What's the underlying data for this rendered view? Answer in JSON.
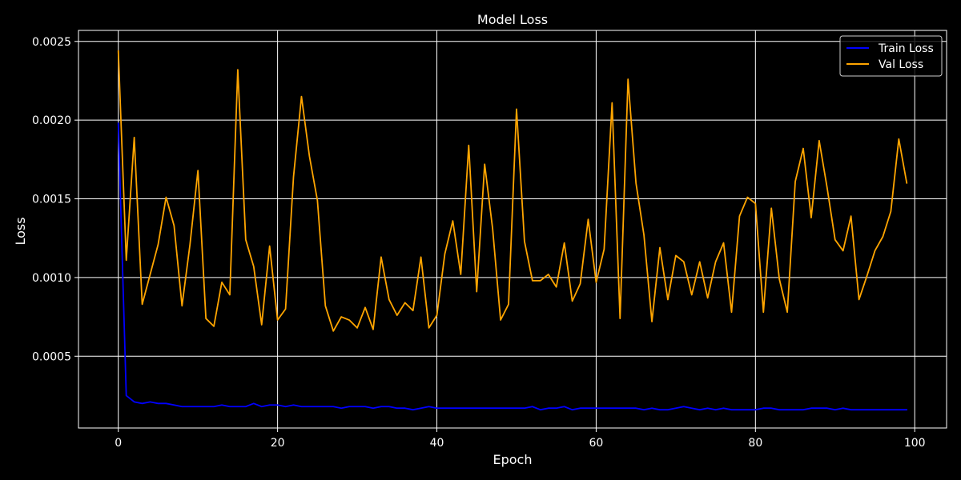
{
  "colors": {
    "background": "#000000",
    "axes": "#ffffff",
    "grid": "#ffffff",
    "text": "#ffffff"
  },
  "chart_data": {
    "type": "line",
    "title": "Model Loss",
    "xlabel": "Epoch",
    "ylabel": "Loss",
    "xlim": [
      -5,
      104
    ],
    "ylim": [
      4.4e-05,
      0.00257
    ],
    "xticks": [
      0,
      20,
      40,
      60,
      80,
      100
    ],
    "xtick_labels": [
      "0",
      "20",
      "40",
      "60",
      "80",
      "100"
    ],
    "yticks": [
      0.0005,
      0.001,
      0.0015,
      0.002,
      0.0025
    ],
    "ytick_labels": [
      "0.0005",
      "0.0010",
      "0.0015",
      "0.0020",
      "0.0025"
    ],
    "grid": true,
    "legend_position": "top-right",
    "x": [
      0,
      1,
      2,
      3,
      4,
      5,
      6,
      7,
      8,
      9,
      10,
      11,
      12,
      13,
      14,
      15,
      16,
      17,
      18,
      19,
      20,
      21,
      22,
      23,
      24,
      25,
      26,
      27,
      28,
      29,
      30,
      31,
      32,
      33,
      34,
      35,
      36,
      37,
      38,
      39,
      40,
      41,
      42,
      43,
      44,
      45,
      46,
      47,
      48,
      49,
      50,
      51,
      52,
      53,
      54,
      55,
      56,
      57,
      58,
      59,
      60,
      61,
      62,
      63,
      64,
      65,
      66,
      67,
      68,
      69,
      70,
      71,
      72,
      73,
      74,
      75,
      76,
      77,
      78,
      79,
      80,
      81,
      82,
      83,
      84,
      85,
      86,
      87,
      88,
      89,
      90,
      91,
      92,
      93,
      94,
      95,
      96,
      97,
      98,
      99
    ],
    "series": [
      {
        "name": "Train Loss",
        "color": "#0000ff",
        "values": [
          0.00198,
          0.00025,
          0.00021,
          0.0002,
          0.00021,
          0.0002,
          0.0002,
          0.00019,
          0.00018,
          0.00018,
          0.00018,
          0.00018,
          0.00018,
          0.00019,
          0.00018,
          0.00018,
          0.00018,
          0.0002,
          0.00018,
          0.00019,
          0.00019,
          0.00018,
          0.00019,
          0.00018,
          0.00018,
          0.00018,
          0.00018,
          0.00018,
          0.00017,
          0.00018,
          0.00018,
          0.00018,
          0.00017,
          0.00018,
          0.00018,
          0.00017,
          0.00017,
          0.00016,
          0.00017,
          0.00018,
          0.00017,
          0.00017,
          0.00017,
          0.00017,
          0.00017,
          0.00017,
          0.00017,
          0.00017,
          0.00017,
          0.00017,
          0.00017,
          0.00017,
          0.00018,
          0.00016,
          0.00017,
          0.00017,
          0.00018,
          0.00016,
          0.00017,
          0.00017,
          0.00017,
          0.00017,
          0.00017,
          0.00017,
          0.00017,
          0.00017,
          0.00016,
          0.00017,
          0.00016,
          0.00016,
          0.00017,
          0.00018,
          0.00017,
          0.00016,
          0.00017,
          0.00016,
          0.00017,
          0.00016,
          0.00016,
          0.00016,
          0.00016,
          0.00017,
          0.00017,
          0.00016,
          0.00016,
          0.00016,
          0.00016,
          0.00017,
          0.00017,
          0.00017,
          0.00016,
          0.00017,
          0.00016,
          0.00016,
          0.00016,
          0.00016,
          0.00016,
          0.00016,
          0.00016,
          0.00016
        ]
      },
      {
        "name": "Val Loss",
        "color": "#ffa500",
        "values": [
          0.00244,
          0.00111,
          0.00189,
          0.00083,
          0.00102,
          0.00121,
          0.00151,
          0.00133,
          0.00082,
          0.00121,
          0.00168,
          0.00074,
          0.00069,
          0.00097,
          0.00089,
          0.00232,
          0.00124,
          0.00107,
          0.0007,
          0.0012,
          0.00073,
          0.0008,
          0.00164,
          0.00215,
          0.00177,
          0.00149,
          0.00082,
          0.00066,
          0.00075,
          0.00073,
          0.00068,
          0.00081,
          0.00067,
          0.00113,
          0.00086,
          0.00076,
          0.00084,
          0.00079,
          0.00113,
          0.00068,
          0.00076,
          0.00115,
          0.00136,
          0.00102,
          0.00184,
          0.00091,
          0.00172,
          0.00131,
          0.00073,
          0.00083,
          0.00207,
          0.00123,
          0.00098,
          0.00098,
          0.00102,
          0.00094,
          0.00122,
          0.00085,
          0.00096,
          0.00137,
          0.00097,
          0.00118,
          0.00211,
          0.00074,
          0.00226,
          0.0016,
          0.00127,
          0.00072,
          0.00119,
          0.00086,
          0.00114,
          0.0011,
          0.00089,
          0.0011,
          0.00087,
          0.0011,
          0.00122,
          0.00078,
          0.00139,
          0.00151,
          0.00147,
          0.00078,
          0.00144,
          0.00099,
          0.00078,
          0.00161,
          0.00182,
          0.00138,
          0.00187,
          0.00157,
          0.00124,
          0.00117,
          0.00139,
          0.00086,
          0.00101,
          0.00117,
          0.00126,
          0.00142,
          0.00188,
          0.0016
        ]
      }
    ]
  }
}
